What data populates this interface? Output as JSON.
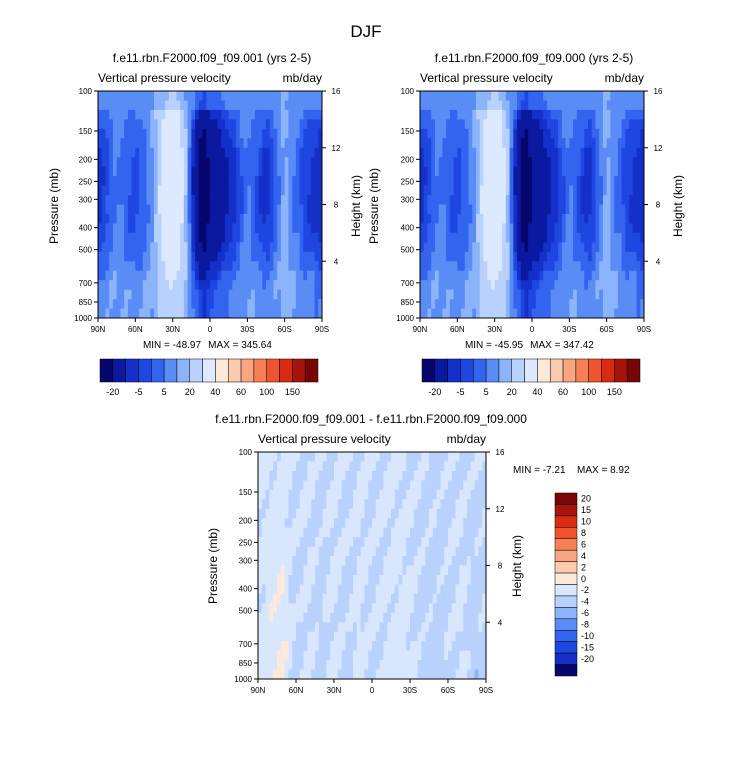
{
  "page": {
    "title": "DJF"
  },
  "colors": {
    "abs_scale": [
      "#06066e",
      "#0a19a0",
      "#1430c8",
      "#1e46e0",
      "#3264f0",
      "#5a8cf5",
      "#8cb4fa",
      "#b9d2fd",
      "#dce9fe",
      "#fde9da",
      "#fbcbb0",
      "#f9a581",
      "#f77f55",
      "#f0542c",
      "#d92a12",
      "#a8130a",
      "#7a0505"
    ],
    "diff_scale": [
      "#06066e",
      "#0a19a0",
      "#1430c8",
      "#1e46e0",
      "#3264f0",
      "#5a8cf5",
      "#8cb4fa",
      "#b9d2fd",
      "#dce9fe",
      "#fde9da",
      "#fbcbb0",
      "#f9a581",
      "#f77f55",
      "#f0542c",
      "#d92a12",
      "#a8130a",
      "#7a0505"
    ]
  },
  "chart_data": [
    {
      "id": "panel1",
      "type": "heatmap",
      "title": "f.e11.rbn.F2000.f09_f09.001 (yrs 2-5)",
      "variable": "Vertical pressure velocity",
      "units": "mb/day",
      "ylabel": "Pressure (mb)",
      "ylabel_right": "Height (km)",
      "x_ticks": [
        "90N",
        "60N",
        "30N",
        "0",
        "30S",
        "60S",
        "90S"
      ],
      "x_values": [
        90,
        60,
        30,
        0,
        -30,
        -60,
        -90
      ],
      "y_ticks": [
        "100",
        "150",
        "200",
        "250",
        "300",
        "400",
        "500",
        "700",
        "850",
        "1000"
      ],
      "y_values": [
        100,
        150,
        200,
        250,
        300,
        400,
        500,
        700,
        850,
        1000
      ],
      "ylim": [
        1000,
        100
      ],
      "height_ticks": [
        "16",
        "12",
        "8",
        "4"
      ],
      "height_values": [
        16,
        12,
        8,
        4
      ],
      "min": -48.97,
      "max": 345.64,
      "min_label": "MIN = -48.97",
      "max_label": "MAX = 345.64",
      "field_bands": [
        {
          "lat": 90,
          "level": -7
        },
        {
          "lat": 75,
          "level": -2
        },
        {
          "lat": 60,
          "level": -5
        },
        {
          "lat": 45,
          "level": -1
        },
        {
          "lat": 30,
          "level": 15
        },
        {
          "lat": 15,
          "level": -5
        },
        {
          "lat": 5,
          "level": -25
        },
        {
          "lat": 0,
          "level": -15
        },
        {
          "lat": -15,
          "level": -8
        },
        {
          "lat": -30,
          "level": -2
        },
        {
          "lat": -45,
          "level": -7
        },
        {
          "lat": -60,
          "level": 0
        },
        {
          "lat": -75,
          "level": -5
        },
        {
          "lat": -90,
          "level": -8
        }
      ],
      "colorbar_labels": [
        "-20",
        "-5",
        "5",
        "20",
        "40",
        "60",
        "100",
        "150"
      ]
    },
    {
      "id": "panel2",
      "type": "heatmap",
      "title": "f.e11.rbn.F2000.f09_f09.000 (yrs 2-5)",
      "variable": "Vertical pressure velocity",
      "units": "mb/day",
      "ylabel": "Pressure (mb)",
      "ylabel_right": "Height (km)",
      "x_ticks": [
        "90N",
        "60N",
        "30N",
        "0",
        "30S",
        "60S",
        "90S"
      ],
      "x_values": [
        90,
        60,
        30,
        0,
        -30,
        -60,
        -90
      ],
      "y_ticks": [
        "100",
        "150",
        "200",
        "250",
        "300",
        "400",
        "500",
        "700",
        "850",
        "1000"
      ],
      "y_values": [
        100,
        150,
        200,
        250,
        300,
        400,
        500,
        700,
        850,
        1000
      ],
      "ylim": [
        1000,
        100
      ],
      "height_ticks": [
        "16",
        "12",
        "8",
        "4"
      ],
      "height_values": [
        16,
        12,
        8,
        4
      ],
      "min": -45.95,
      "max": 347.42,
      "min_label": "MIN = -45.95",
      "max_label": "MAX = 347.42",
      "field_bands": [
        {
          "lat": 90,
          "level": -7
        },
        {
          "lat": 75,
          "level": -2
        },
        {
          "lat": 60,
          "level": -5
        },
        {
          "lat": 45,
          "level": -1
        },
        {
          "lat": 30,
          "level": 15
        },
        {
          "lat": 15,
          "level": -5
        },
        {
          "lat": 5,
          "level": -25
        },
        {
          "lat": 0,
          "level": -15
        },
        {
          "lat": -15,
          "level": -8
        },
        {
          "lat": -30,
          "level": -2
        },
        {
          "lat": -45,
          "level": -7
        },
        {
          "lat": -60,
          "level": 0
        },
        {
          "lat": -75,
          "level": -5
        },
        {
          "lat": -90,
          "level": -8
        }
      ],
      "colorbar_labels": [
        "-20",
        "-5",
        "5",
        "20",
        "40",
        "60",
        "100",
        "150"
      ]
    },
    {
      "id": "panel3",
      "type": "heatmap",
      "title": "f.e11.rbn.F2000.f09_f09.001 - f.e11.rbn.F2000.f09_f09.000",
      "variable": "Vertical pressure velocity",
      "units": "mb/day",
      "ylabel": "Pressure (mb)",
      "ylabel_right": "Height (km)",
      "x_ticks": [
        "90N",
        "60N",
        "30N",
        "0",
        "30S",
        "60S",
        "90S"
      ],
      "x_values": [
        90,
        60,
        30,
        0,
        -30,
        -60,
        -90
      ],
      "y_ticks": [
        "100",
        "150",
        "200",
        "250",
        "300",
        "400",
        "500",
        "700",
        "850",
        "1000"
      ],
      "y_values": [
        100,
        150,
        200,
        250,
        300,
        400,
        500,
        700,
        850,
        1000
      ],
      "ylim": [
        1000,
        100
      ],
      "height_ticks": [
        "16",
        "12",
        "8",
        "4"
      ],
      "height_values": [
        16,
        12,
        8,
        4
      ],
      "min": -7.21,
      "max": 8.92,
      "min_label": "MIN = -7.21",
      "max_label": "MAX = 8.92",
      "field_bands": [
        {
          "lat": 90,
          "level": 0.5
        },
        {
          "lat": 80,
          "level": 1
        },
        {
          "lat": 70,
          "level": 1.5
        },
        {
          "lat": 60,
          "level": -0.5
        },
        {
          "lat": 50,
          "level": 0.3
        },
        {
          "lat": 40,
          "level": -0.8
        },
        {
          "lat": 30,
          "level": 0.5
        },
        {
          "lat": 20,
          "level": -0.5
        },
        {
          "lat": 10,
          "level": 0.8
        },
        {
          "lat": 0,
          "level": -0.3
        },
        {
          "lat": -10,
          "level": 0.5
        },
        {
          "lat": -25,
          "level": 0.8
        },
        {
          "lat": -40,
          "level": -0.5
        },
        {
          "lat": -55,
          "level": -0.8
        },
        {
          "lat": -70,
          "level": 0.5
        },
        {
          "lat": -80,
          "level": -1
        },
        {
          "lat": -90,
          "level": -0.3
        }
      ],
      "colorbar_labels": [
        "20",
        "15",
        "10",
        "8",
        "6",
        "4",
        "2",
        "0",
        "-2",
        "-4",
        "-6",
        "-8",
        "-10",
        "-15",
        "-20"
      ]
    }
  ]
}
